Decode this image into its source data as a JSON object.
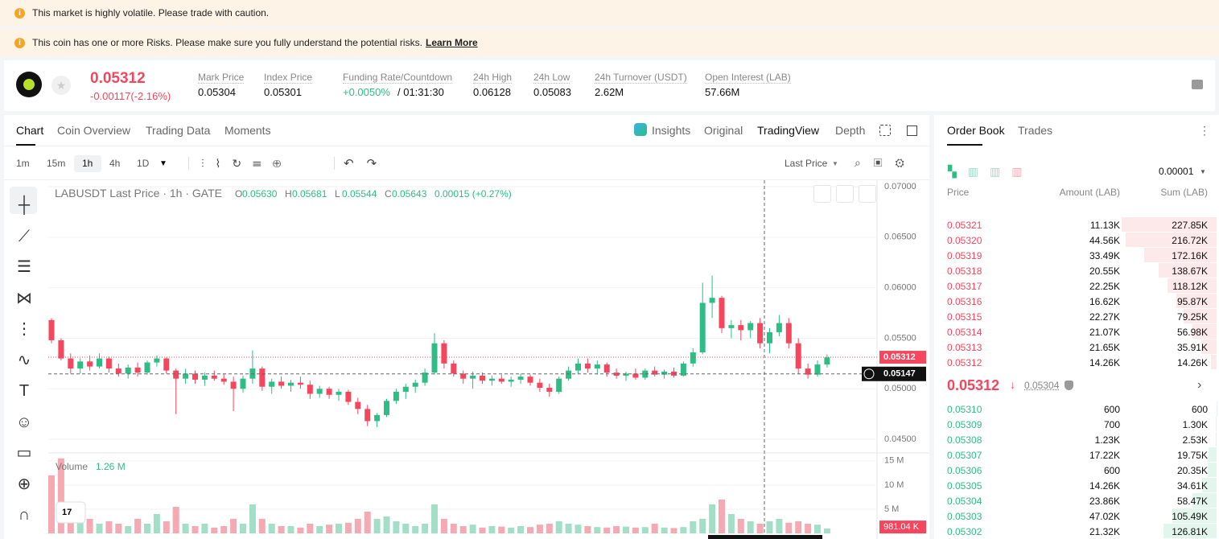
{
  "banners": [
    "This market is highly volatile. Please trade with caution.",
    "This coin has one or more Risks. Please make sure you fully understand the potential risks."
  ],
  "learn_more": "Learn More",
  "ticker": {
    "price": "0.05312",
    "change": "-0.00117(-2.16%)",
    "stats": [
      {
        "label": "Mark Price",
        "value": "0.05304"
      },
      {
        "label": "Index Price",
        "value": "0.05301"
      },
      {
        "label": "Funding Rate/Countdown",
        "value": "+0.0050%",
        "extra": "/ 01:31:30"
      },
      {
        "label": "24h High",
        "value": "0.06128"
      },
      {
        "label": "24h Low",
        "value": "0.05083"
      },
      {
        "label": "24h Turnover (USDT)",
        "value": "2.62M"
      },
      {
        "label": "Open Interest (LAB)",
        "value": "57.66M"
      }
    ]
  },
  "chart_tabs": [
    "Chart",
    "Coin Overview",
    "Trading Data",
    "Moments"
  ],
  "view_tabs": [
    "Insights",
    "Original",
    "TradingView",
    "Depth"
  ],
  "intervals": [
    "1m",
    "15m",
    "1h",
    "4h",
    "1D"
  ],
  "price_type": "Last Price",
  "chart_data": {
    "type": "candlestick",
    "title": "LABUSDT Last Price · 1h · GATE",
    "legend": [
      {
        "key": "O",
        "value": "0.05630"
      },
      {
        "key": "H",
        "value": "0.05681"
      },
      {
        "key": "L",
        "value": "0.05544"
      },
      {
        "key": "C",
        "value": "0.05643"
      }
    ],
    "legend_change": "0.00015 (+0.27%)",
    "up_color": "#2ebd85",
    "down_color": "#f6465d",
    "volume_up_color": "#a3dec6",
    "volume_down_color": "#f5a9b3",
    "ylim": [
      0.04373,
      0.07064
    ],
    "yticks": [
      {
        "value": 0.07,
        "label": "0.07000"
      },
      {
        "value": 0.065,
        "label": "0.06500"
      },
      {
        "value": 0.06,
        "label": "0.06000"
      },
      {
        "value": 0.055,
        "label": "0.05500"
      },
      {
        "value": 0.05,
        "label": "0.05000"
      },
      {
        "value": 0.045,
        "label": "0.04500"
      }
    ],
    "last_price": {
      "value": 0.05312,
      "label": "0.05312"
    },
    "crosshair_price": {
      "value": 0.05147,
      "label": "0.05147"
    },
    "candles": [
      [
        0.0568,
        0.057,
        0.0545,
        0.0548
      ],
      [
        0.0548,
        0.055,
        0.0528,
        0.053
      ],
      [
        0.053,
        0.0535,
        0.0515,
        0.052
      ],
      [
        0.052,
        0.053,
        0.0515,
        0.0527
      ],
      [
        0.0527,
        0.0533,
        0.0518,
        0.0522
      ],
      [
        0.0522,
        0.0535,
        0.052,
        0.053
      ],
      [
        0.053,
        0.0532,
        0.0516,
        0.052
      ],
      [
        0.052,
        0.0525,
        0.0512,
        0.0515
      ],
      [
        0.0515,
        0.0524,
        0.051,
        0.0521
      ],
      [
        0.0521,
        0.0526,
        0.0512,
        0.0516
      ],
      [
        0.0516,
        0.0528,
        0.0514,
        0.0526
      ],
      [
        0.0526,
        0.0533,
        0.0522,
        0.053
      ],
      [
        0.053,
        0.0531,
        0.0515,
        0.0518
      ],
      [
        0.0518,
        0.052,
        0.0475,
        0.051
      ],
      [
        0.051,
        0.052,
        0.0505,
        0.0515
      ],
      [
        0.0515,
        0.0518,
        0.0505,
        0.0509
      ],
      [
        0.0509,
        0.0516,
        0.0503,
        0.0513
      ],
      [
        0.0513,
        0.0518,
        0.0508,
        0.051
      ],
      [
        0.051,
        0.0515,
        0.0504,
        0.0507
      ],
      [
        0.0507,
        0.0512,
        0.0478,
        0.05
      ],
      [
        0.05,
        0.0513,
        0.0496,
        0.051
      ],
      [
        0.051,
        0.0538,
        0.0505,
        0.052
      ],
      [
        0.052,
        0.0522,
        0.0498,
        0.0502
      ],
      [
        0.0502,
        0.051,
        0.0495,
        0.0507
      ],
      [
        0.0507,
        0.0512,
        0.05,
        0.0503
      ],
      [
        0.0503,
        0.0509,
        0.0497,
        0.0506
      ],
      [
        0.0506,
        0.0512,
        0.05,
        0.0504
      ],
      [
        0.0504,
        0.0508,
        0.049,
        0.0495
      ],
      [
        0.0495,
        0.0503,
        0.0491,
        0.05
      ],
      [
        0.05,
        0.0502,
        0.049,
        0.0494
      ],
      [
        0.0494,
        0.05,
        0.0488,
        0.0497
      ],
      [
        0.0497,
        0.0499,
        0.0484,
        0.0487
      ],
      [
        0.0487,
        0.0491,
        0.0475,
        0.048
      ],
      [
        0.048,
        0.0484,
        0.0463,
        0.0468
      ],
      [
        0.0468,
        0.0476,
        0.0462,
        0.0474
      ],
      [
        0.0474,
        0.049,
        0.0472,
        0.0488
      ],
      [
        0.0488,
        0.05,
        0.0485,
        0.0497
      ],
      [
        0.0497,
        0.0505,
        0.049,
        0.0502
      ],
      [
        0.0502,
        0.0509,
        0.0496,
        0.0506
      ],
      [
        0.0506,
        0.052,
        0.0503,
        0.0516
      ],
      [
        0.0516,
        0.0555,
        0.0514,
        0.0545
      ],
      [
        0.0545,
        0.0548,
        0.052,
        0.0525
      ],
      [
        0.0525,
        0.0528,
        0.0512,
        0.0515
      ],
      [
        0.0515,
        0.0518,
        0.0505,
        0.051
      ],
      [
        0.051,
        0.0517,
        0.05,
        0.0513
      ],
      [
        0.0513,
        0.0516,
        0.0505,
        0.0508
      ],
      [
        0.0508,
        0.0513,
        0.0503,
        0.051
      ],
      [
        0.051,
        0.0514,
        0.0505,
        0.0507
      ],
      [
        0.0507,
        0.0512,
        0.0502,
        0.0509
      ],
      [
        0.0509,
        0.0515,
        0.0505,
        0.0512
      ],
      [
        0.0512,
        0.0514,
        0.0503,
        0.0506
      ],
      [
        0.0506,
        0.051,
        0.0497,
        0.0501
      ],
      [
        0.0501,
        0.0505,
        0.0492,
        0.0497
      ],
      [
        0.0497,
        0.0512,
        0.0495,
        0.051
      ],
      [
        0.051,
        0.0522,
        0.0508,
        0.0518
      ],
      [
        0.0518,
        0.053,
        0.0515,
        0.0525
      ],
      [
        0.0525,
        0.053,
        0.0516,
        0.052
      ],
      [
        0.052,
        0.0528,
        0.0514,
        0.0524
      ],
      [
        0.0524,
        0.0526,
        0.0512,
        0.0516
      ],
      [
        0.0516,
        0.052,
        0.051,
        0.0513
      ],
      [
        0.0513,
        0.0517,
        0.0508,
        0.0515
      ],
      [
        0.0515,
        0.052,
        0.0509,
        0.0511
      ],
      [
        0.0511,
        0.052,
        0.0509,
        0.0518
      ],
      [
        0.0518,
        0.0522,
        0.0512,
        0.0514
      ],
      [
        0.0514,
        0.0519,
        0.051,
        0.0517
      ],
      [
        0.0517,
        0.0521,
        0.0511,
        0.0513
      ],
      [
        0.0513,
        0.0527,
        0.0512,
        0.0525
      ],
      [
        0.0525,
        0.054,
        0.0522,
        0.0536
      ],
      [
        0.0536,
        0.0605,
        0.0534,
        0.0585
      ],
      [
        0.0585,
        0.0612,
        0.057,
        0.059
      ],
      [
        0.059,
        0.0592,
        0.0555,
        0.056
      ],
      [
        0.056,
        0.0568,
        0.055,
        0.0563
      ],
      [
        0.0563,
        0.0568,
        0.0548,
        0.0558
      ],
      [
        0.0558,
        0.0567,
        0.055,
        0.0565
      ],
      [
        0.0565,
        0.057,
        0.054,
        0.0545
      ],
      [
        0.0545,
        0.056,
        0.0535,
        0.0556
      ],
      [
        0.0556,
        0.0573,
        0.0552,
        0.0565
      ],
      [
        0.0565,
        0.057,
        0.054,
        0.0545
      ],
      [
        0.0545,
        0.055,
        0.0515,
        0.052
      ],
      [
        0.052,
        0.0525,
        0.051,
        0.0514
      ],
      [
        0.0514,
        0.0528,
        0.0512,
        0.0524
      ],
      [
        0.0524,
        0.0534,
        0.0521,
        0.0531
      ]
    ],
    "volume_title": "Volume",
    "volume_value": "1.26 M",
    "vlim": [
      0,
      16.3
    ],
    "vticks": [
      {
        "value": 15,
        "label": "15 M"
      },
      {
        "value": 10,
        "label": "10 M"
      },
      {
        "value": 5,
        "label": "5 M"
      }
    ],
    "volume_last": {
      "value": 0.98104,
      "label": "981.04 K"
    },
    "volumes": [
      12,
      15.5,
      6,
      4,
      3,
      2,
      2.5,
      2,
      1.5,
      3,
      2,
      4,
      2.5,
      5.5,
      2,
      1.5,
      2,
      1.2,
      1.5,
      3,
      2,
      6,
      3,
      2,
      1.5,
      1.5,
      1.2,
      2,
      1.5,
      1.8,
      2,
      2.2,
      3,
      4.5,
      3,
      3.5,
      2.5,
      2,
      1.5,
      2,
      6,
      3,
      2,
      1.5,
      1.8,
      1.2,
      1.5,
      1.4,
      1.2,
      1.5,
      1.3,
      1.8,
      2,
      2.5,
      2,
      1.8,
      1.5,
      1.3,
      1.2,
      1.5,
      1.4,
      1.2,
      1.3,
      2,
      1.2,
      1.1,
      1.3,
      2.5,
      3,
      6,
      7,
      4,
      3,
      2.5,
      2,
      2.5,
      3,
      2.2,
      2.5,
      2,
      1.8,
      1
    ]
  },
  "order_book": {
    "tabs": [
      "Order Book",
      "Trades"
    ],
    "precision": "0.00001",
    "headers": [
      "Price",
      "Amount (LAB)",
      "Sum (LAB)"
    ],
    "asks": [
      [
        "0.05321",
        "11.13K",
        {
          "value": 227850,
          "label": "227.85K"
        }
      ],
      [
        "0.05320",
        "44.56K",
        {
          "value": 216720,
          "label": "216.72K"
        }
      ],
      [
        "0.05319",
        "33.49K",
        {
          "value": 172160,
          "label": "172.16K"
        }
      ],
      [
        "0.05318",
        "20.55K",
        {
          "value": 138670,
          "label": "138.67K"
        }
      ],
      [
        "0.05317",
        "22.25K",
        {
          "value": 118120,
          "label": "118.12K"
        }
      ],
      [
        "0.05316",
        "16.62K",
        {
          "value": 95870,
          "label": "95.87K"
        }
      ],
      [
        "0.05315",
        "22.27K",
        {
          "value": 79250,
          "label": "79.25K"
        }
      ],
      [
        "0.05314",
        "21.07K",
        {
          "value": 56980,
          "label": "56.98K"
        }
      ],
      [
        "0.05313",
        "21.65K",
        {
          "value": 35910,
          "label": "35.91K"
        }
      ],
      [
        "0.05312",
        "14.26K",
        {
          "value": 14260,
          "label": "14.26K"
        }
      ]
    ],
    "mid_price": "0.05312",
    "mark_price": "0.05304",
    "bids": [
      [
        "0.05310",
        "600",
        600
      ],
      [
        "0.05309",
        "700",
        {
          "value": 1300,
          "label": "1.30K"
        }
      ],
      [
        "0.05308",
        "1.23K",
        {
          "value": 2530,
          "label": "2.53K"
        }
      ],
      [
        "0.05307",
        "17.22K",
        {
          "value": 19750,
          "label": "19.75K"
        }
      ],
      [
        "0.05306",
        "600",
        {
          "value": 20350,
          "label": "20.35K"
        }
      ],
      [
        "0.05305",
        "14.26K",
        {
          "value": 34610,
          "label": "34.61K"
        }
      ],
      [
        "0.05304",
        "23.86K",
        {
          "value": 58470,
          "label": "58.47K"
        }
      ],
      [
        "0.05303",
        "47.02K",
        {
          "value": 105490,
          "label": "105.49K"
        }
      ],
      [
        "0.05302",
        "21.32K",
        {
          "value": 126810,
          "label": "126.81K"
        }
      ]
    ]
  }
}
